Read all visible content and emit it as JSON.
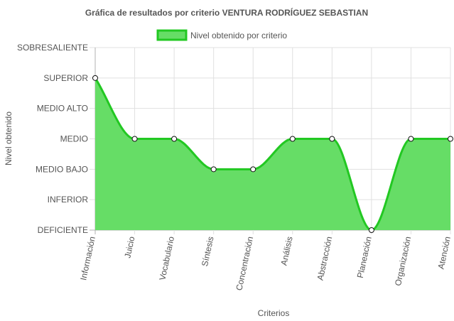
{
  "chart_data": {
    "type": "area",
    "title": "Gráfica de resultados por criterio VENTURA RODRÍGUEZ SEBASTIAN",
    "xlabel": "Criterios",
    "ylabel": "Nivel obtenido",
    "categories": [
      "Información",
      "Juicio",
      "Vocabulario",
      "Síntesis",
      "Concentración",
      "Análisis",
      "Abstracción",
      "Planeación",
      "Organización",
      "Atención"
    ],
    "y_levels": [
      "DEFICIENTE",
      "INFERIOR",
      "MEDIO BAJO",
      "MEDIO",
      "MEDIO ALTO",
      "SUPERIOR",
      "SOBRESALIENTE"
    ],
    "ylim": [
      0,
      6
    ],
    "grid": true,
    "legend_position": "top-center",
    "series": [
      {
        "name": "Nivel obtenido por criterio",
        "values": [
          5,
          3,
          3,
          2,
          2,
          3,
          3,
          0,
          3,
          3
        ],
        "fill_color": "#66dd66",
        "line_color": "#22c822"
      }
    ]
  }
}
